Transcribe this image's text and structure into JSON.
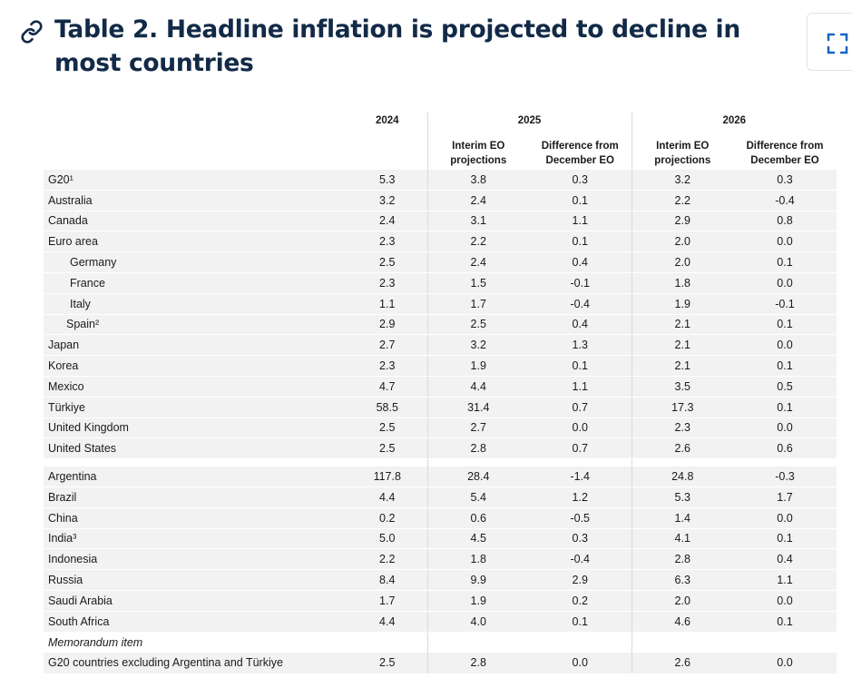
{
  "header": {
    "title": "Table 2. Headline inflation is projected to decline in most countries",
    "link_icon": "link-icon",
    "expand_icon": "expand-icon"
  },
  "table": {
    "years": [
      "2024",
      "2025",
      "2026"
    ],
    "subheaders": {
      "interim": "Interim EO projections",
      "difference": "Difference from December EO"
    },
    "rows": [
      {
        "name": "G20¹",
        "v2024": "5.3",
        "i2025": "3.8",
        "d2025": "0.3",
        "i2026": "3.2",
        "d2026": "0.3"
      },
      {
        "name": "Australia",
        "v2024": "3.2",
        "i2025": "2.4",
        "d2025": "0.1",
        "i2026": "2.2",
        "d2026": "-0.4"
      },
      {
        "name": "Canada",
        "v2024": "2.4",
        "i2025": "3.1",
        "d2025": "1.1",
        "i2026": "2.9",
        "d2026": "0.8"
      },
      {
        "name": "Euro area",
        "v2024": "2.3",
        "i2025": "2.2",
        "d2025": "0.1",
        "i2026": "2.0",
        "d2026": "0.0"
      },
      {
        "name": "Germany",
        "v2024": "2.5",
        "i2025": "2.4",
        "d2025": "0.4",
        "i2026": "2.0",
        "d2026": "0.1"
      },
      {
        "name": "France",
        "v2024": "2.3",
        "i2025": "1.5",
        "d2025": "-0.1",
        "i2026": "1.8",
        "d2026": "0.0"
      },
      {
        "name": "Italy",
        "v2024": "1.1",
        "i2025": "1.7",
        "d2025": "-0.4",
        "i2026": "1.9",
        "d2026": "-0.1"
      },
      {
        "name": "Spain²",
        "v2024": "2.9",
        "i2025": "2.5",
        "d2025": "0.4",
        "i2026": "2.1",
        "d2026": "0.1"
      },
      {
        "name": "Japan",
        "v2024": "2.7",
        "i2025": "3.2",
        "d2025": "1.3",
        "i2026": "2.1",
        "d2026": "0.0"
      },
      {
        "name": "Korea",
        "v2024": "2.3",
        "i2025": "1.9",
        "d2025": "0.1",
        "i2026": "2.1",
        "d2026": "0.1"
      },
      {
        "name": "Mexico",
        "v2024": "4.7",
        "i2025": "4.4",
        "d2025": "1.1",
        "i2026": "3.5",
        "d2026": "0.5"
      },
      {
        "name": "Türkiye",
        "v2024": "58.5",
        "i2025": "31.4",
        "d2025": "0.7",
        "i2026": "17.3",
        "d2026": "0.1"
      },
      {
        "name": "United Kingdom",
        "v2024": "2.5",
        "i2025": "2.7",
        "d2025": "0.0",
        "i2026": "2.3",
        "d2026": "0.0"
      },
      {
        "name": "United States",
        "v2024": "2.5",
        "i2025": "2.8",
        "d2025": "0.7",
        "i2026": "2.6",
        "d2026": "0.6"
      },
      {
        "name": "Argentina",
        "v2024": "117.8",
        "i2025": "28.4",
        "d2025": "-1.4",
        "i2026": "24.8",
        "d2026": "-0.3"
      },
      {
        "name": "Brazil",
        "v2024": "4.4",
        "i2025": "5.4",
        "d2025": "1.2",
        "i2026": "5.3",
        "d2026": "1.7"
      },
      {
        "name": "China",
        "v2024": "0.2",
        "i2025": "0.6",
        "d2025": "-0.5",
        "i2026": "1.4",
        "d2026": "0.0"
      },
      {
        "name": "India³",
        "v2024": "5.0",
        "i2025": "4.5",
        "d2025": "0.3",
        "i2026": "4.1",
        "d2026": "0.1"
      },
      {
        "name": "Indonesia",
        "v2024": "2.2",
        "i2025": "1.8",
        "d2025": "-0.4",
        "i2026": "2.8",
        "d2026": "0.4"
      },
      {
        "name": "Russia",
        "v2024": "8.4",
        "i2025": "9.9",
        "d2025": "2.9",
        "i2026": "6.3",
        "d2026": "1.1"
      },
      {
        "name": "Saudi Arabia",
        "v2024": "1.7",
        "i2025": "1.9",
        "d2025": "0.2",
        "i2026": "2.0",
        "d2026": "0.0"
      },
      {
        "name": "South Africa",
        "v2024": "4.4",
        "i2025": "4.0",
        "d2025": "0.1",
        "i2026": "4.6",
        "d2026": "0.1"
      }
    ],
    "memo_label": "Memorandum item",
    "memo_row": {
      "name": "G20 countries excluding Argentina and Türkiye",
      "v2024": "2.5",
      "i2025": "2.8",
      "d2025": "0.0",
      "i2026": "2.6",
      "d2026": "0.0"
    }
  }
}
